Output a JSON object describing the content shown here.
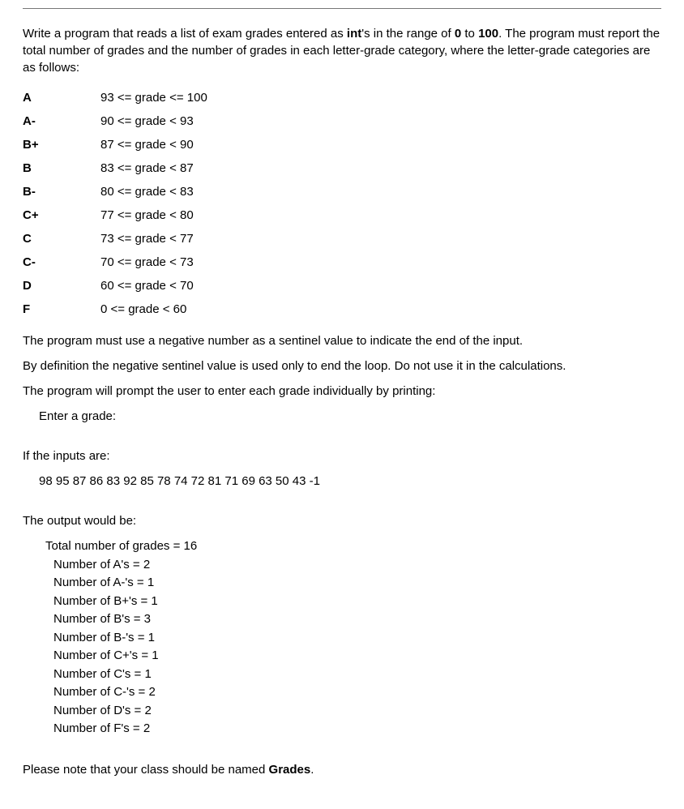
{
  "intro": {
    "pre1": "Write a program that reads a list of exam grades entered as ",
    "bold1": "int",
    "mid1": "'s in the range of ",
    "bold2": "0",
    "mid2": " to ",
    "bold3": "100",
    "post1": ". The program must report the total number of grades and the number of grades in each letter-grade category, where the letter-grade categories are as follows:"
  },
  "grades": [
    {
      "letter": "A",
      "range": "93 <= grade <= 100"
    },
    {
      "letter": "A-",
      "range": "90 <= grade < 93"
    },
    {
      "letter": "B+",
      "range": "87 <= grade < 90"
    },
    {
      "letter": "B",
      "range": "83 <= grade < 87"
    },
    {
      "letter": "B-",
      "range": "80 <= grade < 83"
    },
    {
      "letter": "C+",
      "range": "77 <= grade < 80"
    },
    {
      "letter": "C",
      "range": "73 <= grade < 77"
    },
    {
      "letter": "C-",
      "range": "70 <= grade < 73"
    },
    {
      "letter": "D",
      "range": "60 <= grade < 70"
    },
    {
      "letter": "F",
      "range": "0 <= grade < 60"
    }
  ],
  "p_sentinel": "The program must use a negative number as a sentinel value to indicate the end of the input.",
  "p_definition": "By definition the negative sentinel value is used only to end the loop.  Do not use it in the calculations.",
  "p_prompt": "The program will prompt the user to enter each grade individually by printing:",
  "p_enter": "Enter a grade:",
  "p_inputs_label": "If the inputs are:",
  "p_inputs": "98 95 87 86 83 92 85 78 74 72 81 71 69 63 50 43 -1",
  "p_output_label": "The output would be:",
  "output_lines": [
    "Total number of grades = 16",
    "Number of A's  = 2",
    "Number of A-'s = 1",
    "Number of B+'s = 1",
    "Number of B's  = 3",
    "Number of B-'s = 1",
    "Number of C+'s = 1",
    "Number of C's  = 1",
    "Number of C-'s = 2",
    "Number of D's  = 2",
    "Number of F's  = 2"
  ],
  "footer": {
    "pre": "Please note that your class should be named ",
    "bold": "Grades",
    "post": "."
  }
}
